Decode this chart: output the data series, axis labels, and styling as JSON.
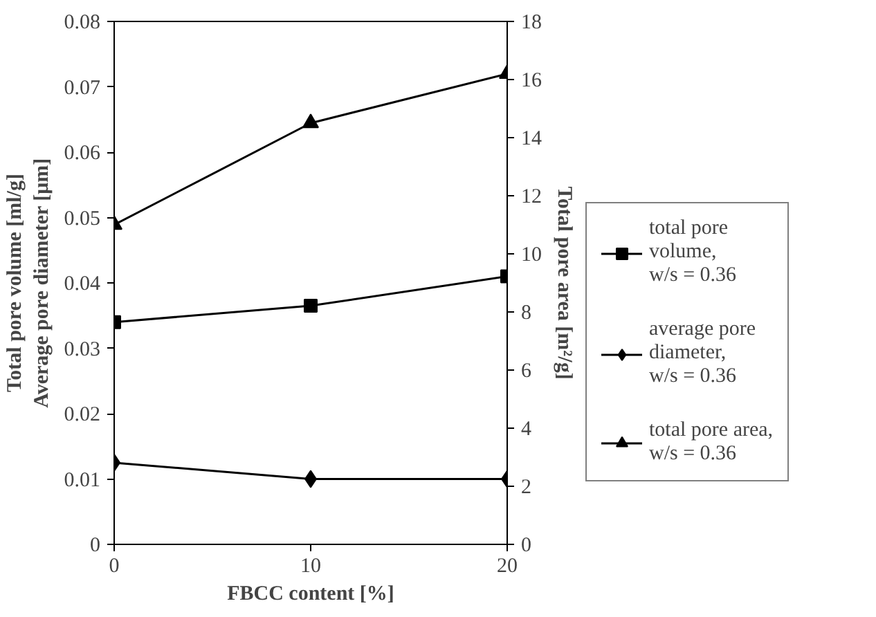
{
  "chart_data": {
    "type": "line",
    "xlabel": "FBCC content [%]",
    "ylabel": "Total pore volume [ml/g]\nAverage pore diameter [μm]",
    "y2label": "Total pore area [m²/g]",
    "x": [
      0,
      10,
      20
    ],
    "xlim": [
      0,
      20
    ],
    "xticks": [
      0,
      10,
      20
    ],
    "ylim": [
      0,
      0.08
    ],
    "yticks": [
      0,
      0.01,
      0.02,
      0.03,
      0.04,
      0.05,
      0.06,
      0.07,
      0.08
    ],
    "y2lim": [
      0,
      18
    ],
    "y2ticks": [
      0,
      2,
      4,
      6,
      8,
      10,
      12,
      14,
      16,
      18
    ],
    "series": [
      {
        "name": "total pore\nvolume,\nw/s = 0.36",
        "color": "#000000",
        "marker": "square",
        "values": [
          0.034,
          0.0365,
          0.041
        ]
      },
      {
        "name": "average pore\ndiameter,\nw/s = 0.36",
        "color": "#000000",
        "marker": "diamond",
        "values": [
          0.0125,
          0.01,
          0.01
        ]
      },
      {
        "name": "total pore area,\nw/s = 0.36",
        "color": "#000000",
        "marker": "triangle",
        "axis": "y2",
        "values": [
          11.0,
          14.5,
          16.2
        ]
      }
    ],
    "grid": false,
    "legend": "right",
    "line_style": "solid"
  }
}
